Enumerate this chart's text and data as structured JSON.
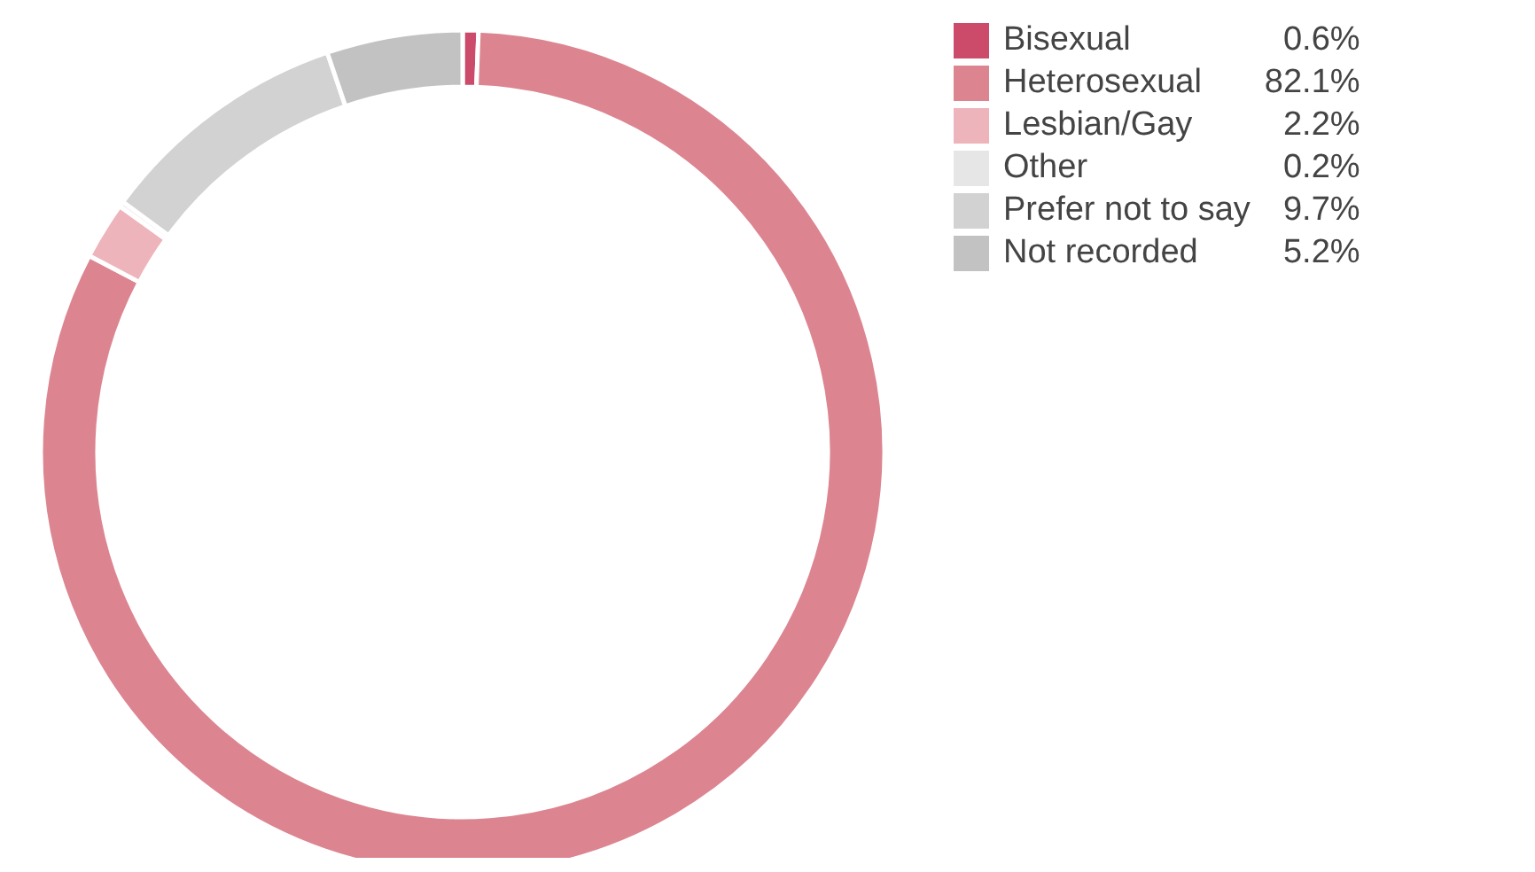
{
  "chart_data": {
    "type": "donut",
    "categories": [
      "Bisexual",
      "Heterosexual",
      "Lesbian/Gay",
      "Other",
      "Prefer not to say",
      "Not recorded"
    ],
    "values": [
      0.6,
      82.1,
      2.2,
      0.2,
      9.7,
      5.2
    ],
    "colors": [
      "#cc4a6a",
      "#dc8591",
      "#eeb4bb",
      "#e6e6e6",
      "#d2d2d2",
      "#c2c2c2"
    ],
    "value_labels": [
      "0.6%",
      "82.1%",
      "2.2%",
      "0.2%",
      "9.7%",
      "5.2%"
    ],
    "legend": "top right"
  }
}
